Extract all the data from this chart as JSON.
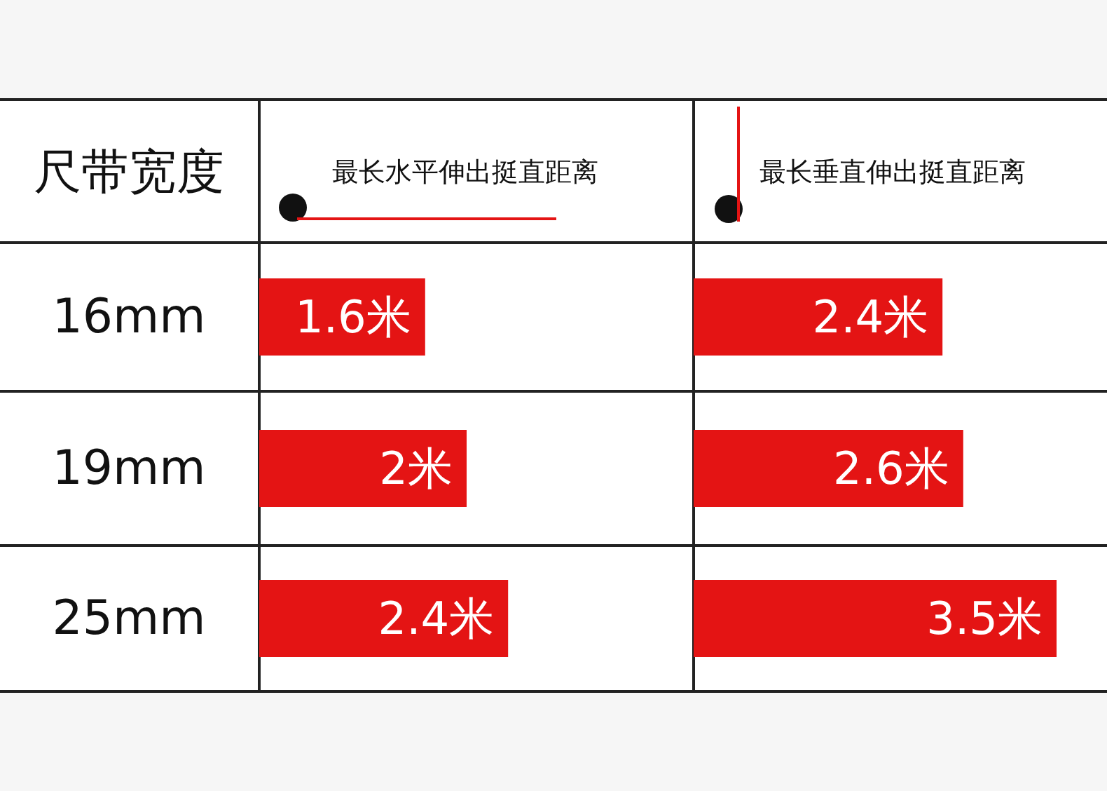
{
  "chart_data": [
    {
      "type": "bar",
      "orientation": "horizontal",
      "ylabel": "尺带宽度",
      "title": "最长水平伸出挺直距离",
      "categories": [
        "16mm",
        "19mm",
        "25mm"
      ],
      "values": [
        1.6,
        2,
        2.4
      ],
      "value_labels": [
        "1.6米",
        "2米",
        "2.4米"
      ],
      "color": "#e41414"
    },
    {
      "type": "bar",
      "orientation": "horizontal",
      "title": "最长垂直伸出挺直距离",
      "categories": [
        null,
        null,
        null
      ],
      "values": [
        2.4,
        2.6,
        3.5
      ],
      "value_labels": [
        "2.4米",
        "2.6米",
        "3.5米"
      ],
      "color": "#e41414"
    }
  ]
}
